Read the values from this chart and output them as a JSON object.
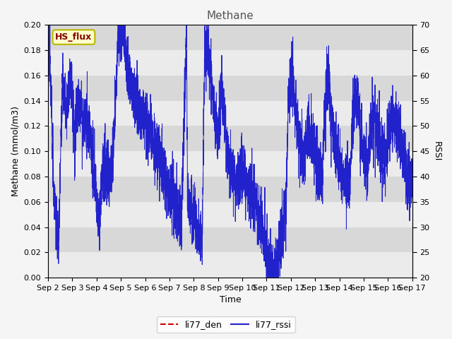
{
  "title": "Methane",
  "xlabel": "Time",
  "ylabel_left": "Methane (mmol/m3)",
  "ylabel_right": "RSSI",
  "ylim_left": [
    0.0,
    0.2
  ],
  "ylim_right": [
    20,
    70
  ],
  "yticks_left": [
    0.0,
    0.02,
    0.04,
    0.06,
    0.08,
    0.1,
    0.12,
    0.14,
    0.16,
    0.18,
    0.2
  ],
  "yticks_right": [
    20,
    25,
    30,
    35,
    40,
    45,
    50,
    55,
    60,
    65,
    70
  ],
  "xtick_labels": [
    "Sep 2",
    "Sep 3",
    "Sep 4",
    "Sep 5",
    "Sep 6",
    "Sep 7",
    "Sep 8",
    "Sep 9",
    "Sep 10",
    "Sep 11",
    "Sep 12",
    "Sep 13",
    "Sep 14",
    "Sep 15",
    "Sep 16",
    "Sep 17"
  ],
  "plot_bg_light": "#ebebeb",
  "plot_bg_dark": "#d8d8d8",
  "grid_color": "#ffffff",
  "outer_bg": "#f5f5f5",
  "legend_box_facecolor": "#ffffcc",
  "legend_box_edgecolor": "#b8b800",
  "legend_box_label": "HS_flux",
  "line1_color": "#cc0000",
  "line1_label": "li77_den",
  "line2_color": "#2222cc",
  "line2_label": "li77_rssi",
  "title_fontsize": 11,
  "axis_fontsize": 9,
  "tick_fontsize": 8,
  "legend_fontsize": 9
}
